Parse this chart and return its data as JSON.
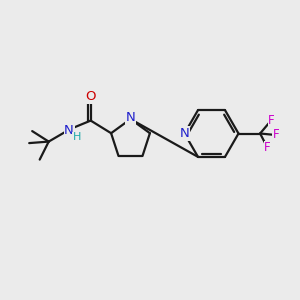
{
  "background_color": "#ebebeb",
  "bond_color": "#1a1a1a",
  "nitrogen_color": "#2020cc",
  "oxygen_color": "#cc0000",
  "fluorine_color": "#cc00cc",
  "hydrogen_color": "#20aaaa",
  "figsize": [
    3.0,
    3.0
  ],
  "dpi": 100,
  "F_labels": [
    "F",
    "F",
    "F"
  ]
}
